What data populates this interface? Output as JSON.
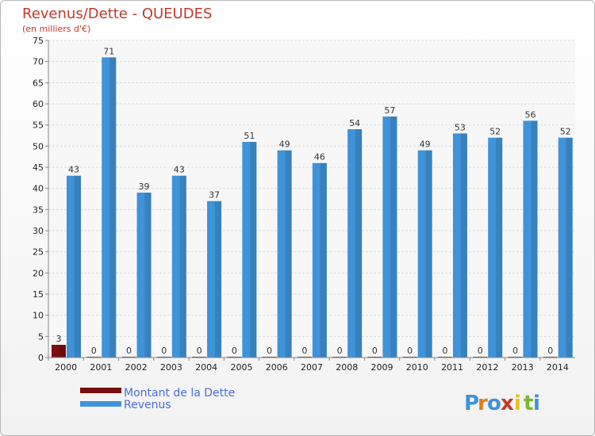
{
  "chart_data": {
    "type": "bar",
    "title": "Revenus/Dette - QUEUDES",
    "subtitle": "(en milliers d'€)",
    "categories": [
      "2000",
      "2001",
      "2002",
      "2003",
      "2004",
      "2005",
      "2006",
      "2007",
      "2008",
      "2009",
      "2010",
      "2011",
      "2012",
      "2013",
      "2014"
    ],
    "series": [
      {
        "name": "Montant de la Dette",
        "color": "#7a0e0e",
        "values": [
          3,
          0,
          0,
          0,
          0,
          0,
          0,
          0,
          0,
          0,
          0,
          0,
          0,
          0,
          0
        ]
      },
      {
        "name": "Revenus",
        "color": "#3f93d8",
        "values": [
          43,
          71,
          39,
          43,
          37,
          51,
          49,
          46,
          54,
          57,
          49,
          53,
          52,
          56,
          52
        ]
      }
    ],
    "ylim": [
      0,
      75
    ],
    "yticks": [
      0,
      5,
      10,
      15,
      20,
      25,
      30,
      35,
      40,
      45,
      50,
      55,
      60,
      65,
      70,
      75
    ],
    "grid": true,
    "legend_position": "bottom-left"
  },
  "logo": {
    "letters": [
      "P",
      "r",
      "o",
      "x",
      "i",
      "t",
      "i"
    ],
    "colors": [
      "#3f93d8",
      "#e07b1a",
      "#3f93d8",
      "#c0392b",
      "#e0c21a",
      "#7ab82e",
      "#3f93d8"
    ]
  }
}
